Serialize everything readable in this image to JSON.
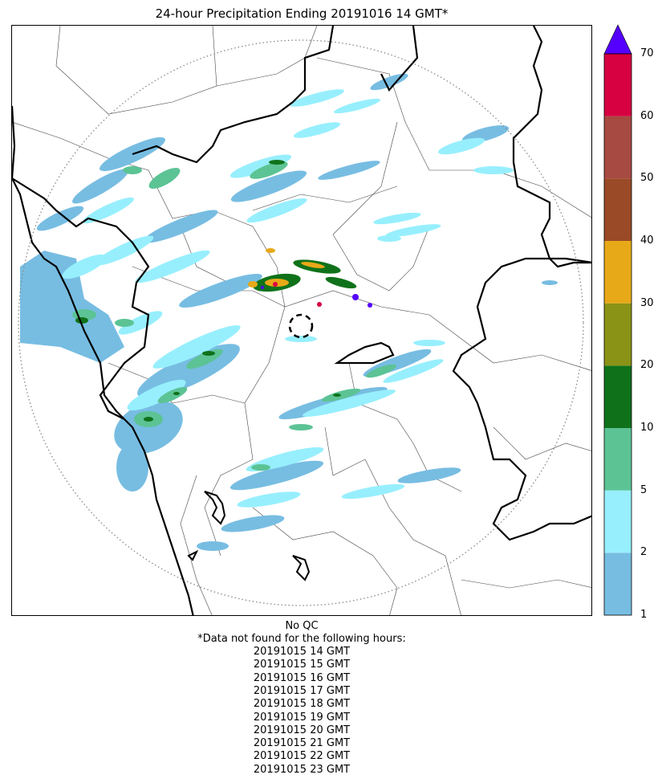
{
  "title": "24-hour Precipitation Ending 20191016 14 GMT*",
  "colorbar": {
    "labels": [
      "1",
      "2",
      "5",
      "10",
      "20",
      "30",
      "40",
      "50",
      "60",
      "70"
    ],
    "colors": [
      "#77bde2",
      "#97effd",
      "#5cc395",
      "#0f721a",
      "#8b9316",
      "#e8a918",
      "#9a4a26",
      "#a64a42",
      "#d70041"
    ],
    "overflow_color": "#5500ff",
    "extend": "max"
  },
  "radar_range_ring": {
    "color": "#888888",
    "style": "dotted"
  },
  "map_features": [
    "coastline",
    "country-borders",
    "district-borders",
    "radar-site-marker"
  ],
  "footer": {
    "qc_note": "No QC",
    "missing_heading": "*Data not found for the following hours:",
    "missing_hours": [
      "20191015 14 GMT",
      "20191015 15 GMT",
      "20191015 16 GMT",
      "20191015 17 GMT",
      "20191015 18 GMT",
      "20191015 19 GMT",
      "20191015 20 GMT",
      "20191015 21 GMT",
      "20191015 22 GMT",
      "20191015 23 GMT"
    ]
  }
}
